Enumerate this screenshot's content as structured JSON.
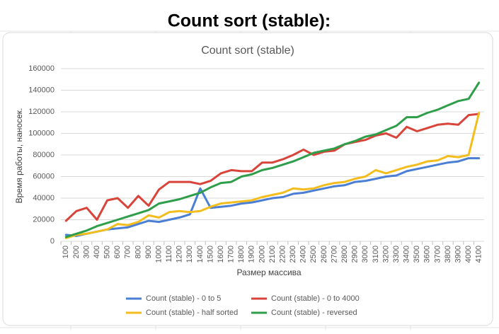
{
  "title": "Count sort (stable):",
  "chart_data": {
    "type": "line",
    "title": "Count sort (stable)",
    "x_label": "Размер массива",
    "y_label": "Время работы, наносек.",
    "categories": [
      100,
      200,
      300,
      400,
      500,
      600,
      700,
      800,
      900,
      1000,
      1100,
      1200,
      1300,
      1400,
      1500,
      1600,
      1700,
      1800,
      1900,
      2000,
      2100,
      2200,
      2300,
      2400,
      2500,
      2600,
      2700,
      2800,
      2900,
      3000,
      3100,
      3200,
      3300,
      3400,
      3500,
      3600,
      3700,
      3800,
      3900,
      4000,
      4100
    ],
    "series": [
      {
        "name": "Count (stable) - 0 to 5",
        "color": "#4a7fd4",
        "values": [
          6000,
          5000,
          7000,
          9000,
          11000,
          12000,
          13000,
          16000,
          19000,
          18000,
          20000,
          22000,
          25000,
          49000,
          31000,
          32000,
          33000,
          35000,
          36000,
          38000,
          40000,
          41000,
          44000,
          45000,
          47000,
          49000,
          51000,
          52000,
          55000,
          56000,
          58000,
          60000,
          61000,
          65000,
          67000,
          69000,
          71000,
          73000,
          74000,
          77000,
          77000
        ]
      },
      {
        "name": "Count (stable) - 0 to 4000",
        "color": "#d9443a",
        "values": [
          19000,
          28000,
          31000,
          20000,
          38000,
          40000,
          31000,
          42000,
          33000,
          48000,
          55000,
          55000,
          55000,
          53000,
          56000,
          63000,
          66000,
          65000,
          65000,
          73000,
          73000,
          76000,
          80000,
          85000,
          80000,
          83000,
          84000,
          90000,
          92000,
          94000,
          98000,
          100000,
          96000,
          106000,
          102000,
          105000,
          108000,
          109000,
          108000,
          117000,
          118000
        ]
      },
      {
        "name": "Count (stable) - half sorted",
        "color": "#f2bd1d",
        "values": [
          3000,
          6000,
          7000,
          9000,
          11000,
          16000,
          15000,
          18000,
          24000,
          22000,
          27000,
          28000,
          27000,
          28000,
          32000,
          35000,
          36000,
          37000,
          38000,
          41000,
          43000,
          45000,
          49000,
          48000,
          49000,
          52000,
          54000,
          55000,
          58000,
          60000,
          66000,
          63000,
          66000,
          69000,
          71000,
          74000,
          75000,
          79000,
          78000,
          80000,
          119000
        ]
      },
      {
        "name": "Count (stable) - reversed",
        "color": "#2f9e4a",
        "values": [
          4000,
          7000,
          10000,
          14000,
          17000,
          20000,
          23000,
          26000,
          29000,
          35000,
          37000,
          39000,
          42000,
          45000,
          50000,
          54000,
          55000,
          60000,
          62000,
          66000,
          68000,
          71000,
          74000,
          78000,
          82000,
          84000,
          86000,
          90000,
          93000,
          97000,
          99000,
          103000,
          107000,
          115000,
          115000,
          119000,
          122000,
          126000,
          130000,
          132000,
          147000
        ]
      }
    ],
    "ylim": [
      0,
      160000
    ],
    "yticks": [
      0,
      20000,
      40000,
      60000,
      80000,
      100000,
      120000,
      140000,
      160000
    ],
    "grid": true
  }
}
